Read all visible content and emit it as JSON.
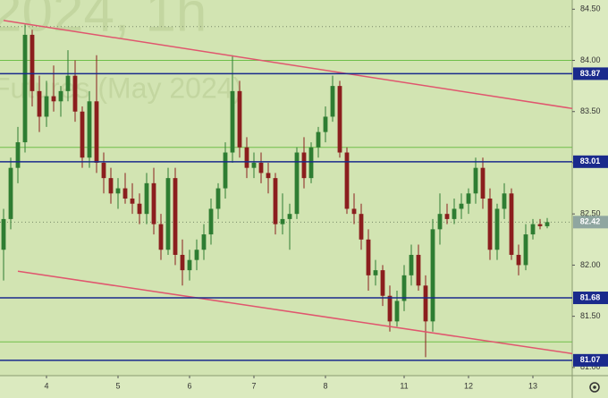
{
  "chart_data": {
    "type": "candlestick",
    "watermark_title": "2024, 1h",
    "watermark_subtitle": "Futures (May 2024)",
    "open": [
      82.15,
      82.45,
      82.95,
      83.2,
      84.25,
      83.7,
      83.45,
      83.65,
      83.6,
      83.7,
      83.85,
      83.5,
      83.05,
      83.6,
      83.0,
      82.85,
      82.7,
      82.75,
      82.65,
      82.6,
      82.5,
      82.8,
      82.4,
      82.15,
      82.85,
      82.1,
      81.95,
      82.05,
      82.15,
      82.3,
      82.55,
      82.75,
      83.1,
      83.7,
      83.15,
      82.95,
      83.0,
      82.9,
      82.85,
      82.4,
      82.45,
      82.5,
      83.1,
      82.85,
      83.15,
      83.3,
      83.45,
      83.75,
      83.1,
      82.55,
      82.5,
      82.25,
      81.9,
      81.95,
      81.7,
      81.45,
      81.65,
      81.9,
      82.1,
      81.8,
      81.45,
      82.35,
      82.5,
      82.45,
      82.55,
      82.6,
      82.7,
      82.95,
      82.65,
      82.15,
      82.55,
      82.7,
      82.1,
      82.0,
      82.3,
      82.4,
      82.38
    ],
    "high": [
      82.55,
      83.05,
      83.35,
      84.35,
      84.3,
      83.85,
      83.8,
      83.95,
      83.75,
      84.1,
      84.0,
      83.55,
      83.7,
      84.05,
      83.1,
      82.95,
      82.85,
      82.9,
      82.8,
      82.7,
      82.9,
      82.95,
      82.5,
      82.95,
      82.95,
      82.25,
      82.15,
      82.25,
      82.4,
      82.65,
      82.8,
      83.2,
      84.05,
      83.8,
      83.25,
      83.1,
      83.1,
      83.0,
      82.9,
      82.7,
      82.6,
      83.15,
      83.25,
      83.2,
      83.35,
      83.55,
      83.85,
      83.8,
      83.15,
      82.7,
      82.6,
      82.35,
      82.05,
      82.0,
      81.8,
      81.75,
      82.0,
      82.2,
      82.2,
      81.9,
      82.45,
      82.7,
      82.6,
      82.65,
      82.7,
      82.75,
      83.05,
      83.05,
      82.75,
      82.6,
      82.8,
      82.75,
      82.2,
      82.4,
      82.45,
      82.45,
      82.46
    ],
    "low": [
      81.85,
      82.35,
      82.8,
      83.1,
      83.55,
      83.3,
      83.35,
      83.5,
      83.45,
      83.6,
      83.4,
      82.95,
      82.95,
      82.9,
      82.7,
      82.6,
      82.55,
      82.6,
      82.5,
      82.4,
      82.4,
      82.3,
      82.05,
      82.1,
      82.0,
      81.8,
      81.85,
      81.95,
      82.05,
      82.2,
      82.45,
      82.65,
      83.0,
      83.05,
      82.85,
      82.85,
      82.8,
      82.7,
      82.3,
      82.3,
      82.15,
      82.45,
      82.75,
      82.8,
      83.05,
      83.2,
      83.4,
      83.05,
      82.5,
      82.4,
      82.15,
      81.75,
      81.8,
      81.6,
      81.35,
      81.4,
      81.55,
      81.8,
      81.75,
      81.1,
      81.35,
      82.2,
      82.4,
      82.4,
      82.45,
      82.5,
      82.6,
      82.55,
      82.05,
      82.05,
      82.45,
      82.05,
      81.9,
      81.95,
      82.25,
      82.35,
      82.36
    ],
    "close": [
      82.45,
      82.95,
      83.2,
      84.25,
      83.7,
      83.45,
      83.65,
      83.6,
      83.7,
      83.85,
      83.5,
      83.05,
      83.6,
      83.0,
      82.85,
      82.7,
      82.75,
      82.65,
      82.6,
      82.5,
      82.8,
      82.4,
      82.15,
      82.85,
      82.1,
      81.95,
      82.05,
      82.15,
      82.3,
      82.55,
      82.75,
      83.1,
      83.7,
      83.15,
      82.95,
      83.0,
      82.9,
      82.85,
      82.4,
      82.45,
      82.5,
      83.1,
      82.85,
      83.15,
      83.3,
      83.45,
      83.75,
      83.1,
      82.55,
      82.5,
      82.25,
      81.9,
      81.95,
      81.7,
      81.45,
      81.65,
      81.9,
      82.1,
      81.8,
      81.45,
      82.35,
      82.5,
      82.45,
      82.55,
      82.6,
      82.7,
      82.95,
      82.65,
      82.15,
      82.55,
      82.7,
      82.1,
      82.0,
      82.3,
      82.4,
      82.38,
      82.42
    ],
    "up_color": "#2e7d32",
    "down_color": "#8b1e1e",
    "xlim": [
      -0.5,
      79.5
    ],
    "xticks": [
      {
        "value": 6,
        "label": "4"
      },
      {
        "value": 16,
        "label": "5"
      },
      {
        "value": 26,
        "label": "6"
      },
      {
        "value": 35,
        "label": "7"
      },
      {
        "value": 45,
        "label": "8"
      },
      {
        "value": 56,
        "label": "11"
      },
      {
        "value": 65,
        "label": "12"
      },
      {
        "value": 74,
        "label": "13"
      }
    ],
    "ylim": [
      80.92,
      84.59
    ],
    "yticks": [
      {
        "value": 84.5,
        "label": "84.50"
      },
      {
        "value": 84.0,
        "label": "84.00"
      },
      {
        "value": 83.5,
        "label": "83.50"
      },
      {
        "value": 83.0,
        "label": "83.00"
      },
      {
        "value": 82.5,
        "label": "82.50"
      },
      {
        "value": 82.0,
        "label": "82.00"
      },
      {
        "value": 81.5,
        "label": "81.50"
      },
      {
        "value": 81.0,
        "label": "81.00"
      }
    ],
    "levels": [
      83.87,
      83.01,
      81.68,
      81.07
    ],
    "level_color": "#1a2a8c",
    "green_levels": [
      84.0,
      83.15,
      81.25
    ],
    "green_color": "#6fbf4a",
    "dotted_levels": [
      84.33
    ],
    "last_price": 82.42,
    "trendlines": [
      {
        "x": [
          0,
          79.5
        ],
        "y": [
          84.39,
          83.53
        ]
      },
      {
        "x": [
          2,
          79.5
        ],
        "y": [
          81.94,
          81.135
        ]
      }
    ],
    "trend_color": "#e0566e"
  }
}
